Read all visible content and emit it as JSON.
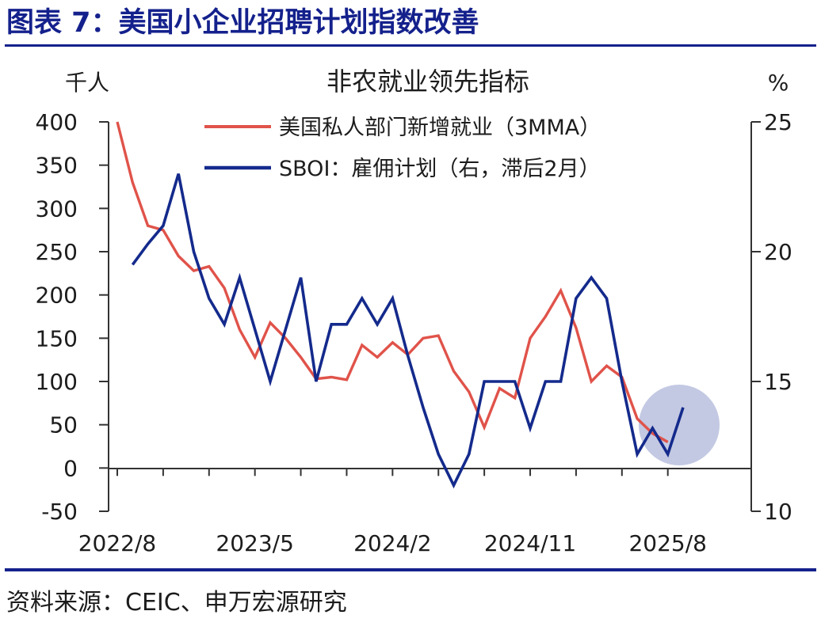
{
  "figure_title": "图表 7：美国小企业招聘计划指数改善",
  "source": "资料来源：CEIC、申万宏源研究",
  "colors": {
    "title": "#14218c",
    "rule": "#14218c",
    "red_series": "#e0534a",
    "blue_series": "#142a8c",
    "highlight": "#b8c0de"
  },
  "chart_data": {
    "type": "line",
    "title": "非农就业领先指标",
    "left_axis": {
      "unit": "千人",
      "ylim": [
        -50,
        400
      ],
      "ticks": [
        400,
        350,
        300,
        250,
        200,
        150,
        100,
        50,
        0,
        -50
      ]
    },
    "right_axis": {
      "unit": "%",
      "ylim": [
        10,
        25
      ],
      "ticks": [
        25,
        20,
        15,
        10
      ]
    },
    "x_ticks": [
      "2022/8",
      "2023/5",
      "2024/2",
      "2024/11",
      "2025/8"
    ],
    "x": [
      "2022/8",
      "2022/9",
      "2022/10",
      "2022/11",
      "2022/12",
      "2023/1",
      "2023/2",
      "2023/3",
      "2023/4",
      "2023/5",
      "2023/6",
      "2023/7",
      "2023/8",
      "2023/9",
      "2023/10",
      "2023/11",
      "2023/12",
      "2024/1",
      "2024/2",
      "2024/3",
      "2024/4",
      "2024/5",
      "2024/6",
      "2024/7",
      "2024/8",
      "2024/9",
      "2024/10",
      "2024/11",
      "2024/12",
      "2025/1",
      "2025/2",
      "2025/3",
      "2025/4",
      "2025/5",
      "2025/6",
      "2025/7",
      "2025/8",
      "2025/9"
    ],
    "grid": false,
    "legend_position": "top-center",
    "series": [
      {
        "name": "美国私人部门新增就业（3MMA）",
        "axis": "left",
        "color": "#e0534a",
        "values": [
          400,
          330,
          280,
          275,
          245,
          228,
          233,
          208,
          160,
          128,
          168,
          150,
          128,
          103,
          105,
          102,
          142,
          128,
          145,
          131,
          150,
          153,
          112,
          88,
          47,
          92,
          81,
          150,
          175,
          205,
          162,
          100,
          118,
          105,
          57,
          40,
          30,
          null
        ]
      },
      {
        "name": "SBOI：雇佣计划（右，滞后2月）",
        "axis": "right",
        "color": "#142a8c",
        "values": [
          null,
          19.5,
          20.3,
          21.0,
          23.0,
          20.0,
          18.2,
          17.2,
          19.0,
          17.0,
          15.0,
          17.0,
          19.0,
          15.0,
          17.2,
          17.2,
          18.2,
          17.2,
          18.2,
          16.0,
          14.0,
          12.2,
          11.0,
          12.2,
          15.0,
          15.0,
          15.0,
          13.2,
          15.0,
          15.0,
          18.2,
          19.0,
          18.2,
          15.0,
          12.2,
          13.2,
          12.2,
          14.0
        ]
      }
    ],
    "highlight": {
      "label": "",
      "from_index": 34,
      "to_index": 37
    }
  }
}
